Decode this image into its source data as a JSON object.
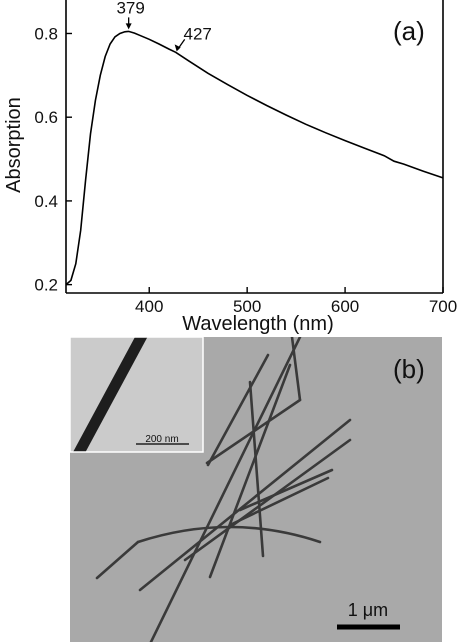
{
  "figure": {
    "panel_a_label": "(a)",
    "panel_b_label": "(b)",
    "inset_scale_label": "200 nm",
    "main_scale_label": "1 μm"
  },
  "chart_data": {
    "type": "line",
    "title": "",
    "xlabel": "Wavelength (nm)",
    "ylabel": "Absorption",
    "xlim": [
      315,
      700
    ],
    "ylim": [
      0.18,
      0.88
    ],
    "xticks": [
      400,
      500,
      600,
      700
    ],
    "yticks": [
      0.2,
      0.4,
      0.6,
      0.8
    ],
    "grid": false,
    "legend": "none",
    "series": [
      {
        "color": "#000000",
        "x": [
          315,
          320,
          325,
          330,
          335,
          340,
          345,
          350,
          355,
          360,
          365,
          370,
          375,
          379,
          385,
          390,
          400,
          410,
          420,
          427,
          440,
          460,
          480,
          500,
          520,
          540,
          560,
          580,
          600,
          620,
          640,
          650,
          660,
          680,
          700
        ],
        "y": [
          0.2,
          0.21,
          0.25,
          0.33,
          0.45,
          0.56,
          0.64,
          0.7,
          0.745,
          0.775,
          0.792,
          0.8,
          0.804,
          0.805,
          0.801,
          0.796,
          0.786,
          0.775,
          0.763,
          0.755,
          0.735,
          0.705,
          0.678,
          0.652,
          0.628,
          0.605,
          0.583,
          0.563,
          0.544,
          0.526,
          0.508,
          0.495,
          0.488,
          0.471,
          0.455
        ]
      }
    ],
    "annotations": [
      {
        "text": "379",
        "x": 379,
        "y": 0.805
      },
      {
        "text": "427",
        "x": 427,
        "y": 0.755
      }
    ]
  }
}
